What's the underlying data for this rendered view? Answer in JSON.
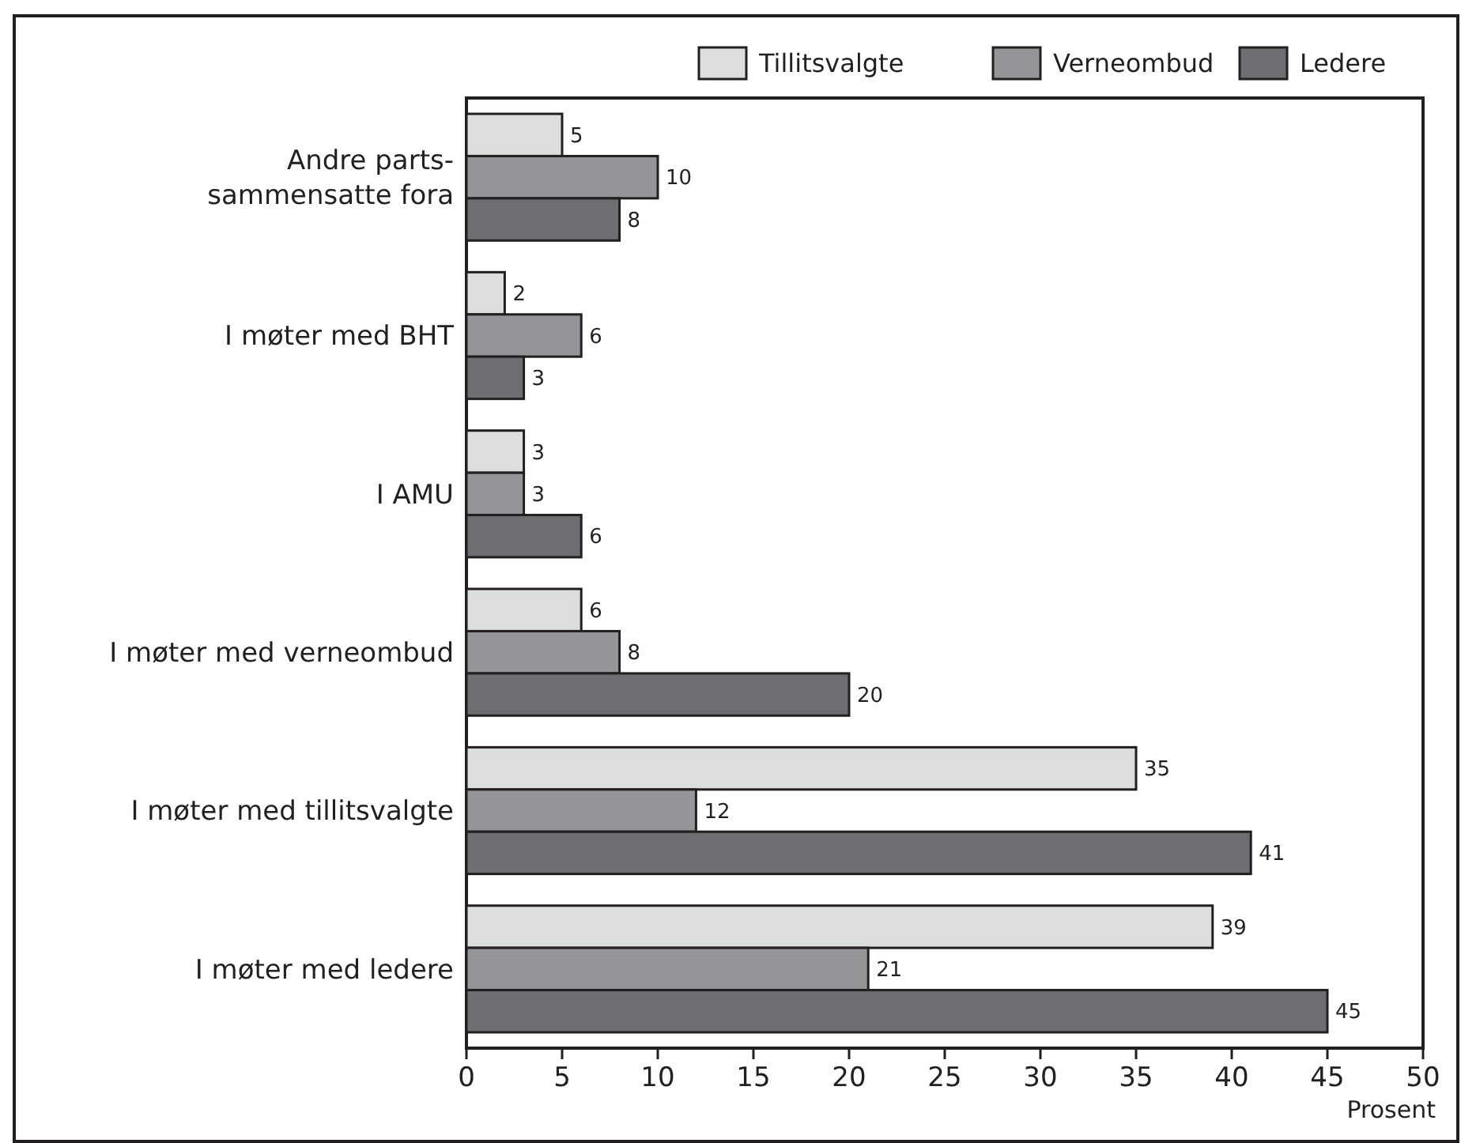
{
  "chart_data": {
    "type": "bar",
    "orientation": "horizontal",
    "xlabel": "Prosent",
    "categories": [
      "Andre parts-\nsammensatte fora",
      "I møter med BHT",
      "I AMU",
      "I møter med verneombud",
      "I møter med tillitsvalgte",
      "I møter med ledere"
    ],
    "series": [
      {
        "name": "Tillitsvalgte",
        "color": "#dcdddf",
        "values": [
          5,
          2,
          3,
          6,
          35,
          39
        ]
      },
      {
        "name": "Verneombud",
        "color": "#939598",
        "values": [
          10,
          6,
          3,
          8,
          12,
          21
        ]
      },
      {
        "name": "Ledere",
        "color": "#6d6e71",
        "values": [
          8,
          3,
          6,
          20,
          41,
          45
        ]
      }
    ],
    "xlim": [
      0,
      50
    ],
    "xticks": [
      0,
      5,
      10,
      15,
      20,
      25,
      30,
      35,
      40,
      45,
      50
    ],
    "data_labels": true,
    "legend": "top right",
    "grid": false
  }
}
